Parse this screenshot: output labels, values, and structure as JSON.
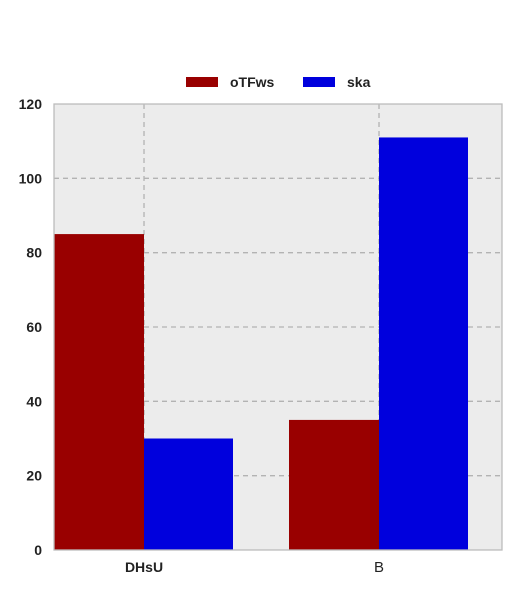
{
  "chart_data": {
    "type": "bar",
    "title": "",
    "xlabel": "",
    "ylabel": "",
    "categories": [
      "DHsU",
      "B"
    ],
    "series": [
      {
        "name": "oTFws",
        "values": [
          85,
          35
        ],
        "color": "#990000"
      },
      {
        "name": "ska",
        "values": [
          30,
          111
        ],
        "color": "#0000dd"
      }
    ],
    "ylim": [
      0,
      120
    ],
    "yticks": [
      "0",
      "20",
      "40",
      "60",
      "80",
      "100",
      "120"
    ],
    "grid": true,
    "legend_position": "top-center",
    "background": "#ececec",
    "grid_color": "#b3b3b3"
  }
}
